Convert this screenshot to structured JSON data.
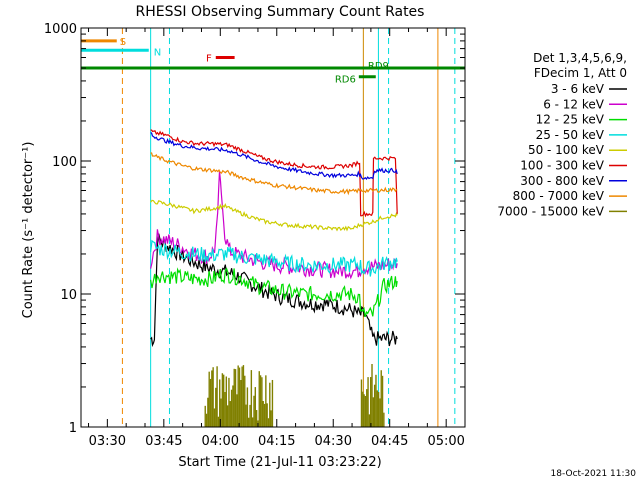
{
  "chart_data": {
    "type": "line",
    "title": "RHESSI Observing Summary Count Rates",
    "xlabel": "Start Time (21-Jul-11 03:23:22)",
    "ylabel": "Count Rate (s⁻¹ detector⁻¹)",
    "yscale": "log",
    "ylim": [
      1,
      1000
    ],
    "xlim": [
      203,
      305
    ],
    "x_unit": "minutes after 00:00 UT, 21-Jul-11",
    "x_ticks": [
      {
        "value": 210,
        "label": "03:30"
      },
      {
        "value": 225,
        "label": "03:45"
      },
      {
        "value": 240,
        "label": "04:00"
      },
      {
        "value": 255,
        "label": "04:15"
      },
      {
        "value": 270,
        "label": "04:30"
      },
      {
        "value": 285,
        "label": "04:45"
      },
      {
        "value": 300,
        "label": "05:00"
      }
    ],
    "y_ticks": [
      {
        "value": 1,
        "label": "1"
      },
      {
        "value": 10,
        "label": "10"
      },
      {
        "value": 100,
        "label": "100"
      },
      {
        "value": 1000,
        "label": "1000"
      }
    ],
    "legend": {
      "position": "right",
      "header_line1": "Det 1,3,4,5,6,9,",
      "header_line2": "FDecim 1, Att 0"
    },
    "series": [
      {
        "name": "3 - 6 keV",
        "color": "#000000",
        "x": [
          221.5,
          222,
          222.5,
          223.3,
          225,
          228,
          232,
          236,
          240,
          244,
          248,
          252,
          256,
          260,
          264,
          268,
          272,
          275,
          277,
          278.5,
          280.5,
          283.5,
          284,
          285.5,
          286.5,
          287
        ],
        "y": [
          4.6,
          4.6,
          4.6,
          26,
          24,
          21,
          18,
          16,
          15,
          14,
          12,
          10.5,
          9.5,
          9,
          8.5,
          8.5,
          8,
          7.5,
          7,
          7,
          4.6,
          4.6,
          4.6,
          4.6,
          4.6,
          4.6
        ]
      },
      {
        "name": "6 - 12 keV",
        "color": "#cc00cc",
        "x": [
          221.5,
          223.3,
          228,
          233,
          237,
          238.5,
          239.3,
          239.8,
          240.3,
          241.2,
          242.5,
          246,
          252,
          258,
          264,
          270,
          275,
          277,
          277.5,
          280.5,
          284,
          286.5,
          287
        ],
        "y": [
          17,
          27,
          24,
          20,
          19,
          22,
          40,
          85,
          55,
          28,
          21,
          19,
          17,
          16,
          15.5,
          15,
          15,
          15,
          16,
          16,
          16.5,
          17,
          17
        ]
      },
      {
        "name": "12 - 25 keV",
        "color": "#00dd00",
        "x": [
          221.5,
          223.3,
          228,
          233,
          238,
          240,
          242,
          246,
          250,
          256,
          262,
          268,
          274,
          277,
          277.5,
          280.5,
          283.5,
          286.5,
          287
        ],
        "y": [
          12,
          14,
          13.5,
          13,
          13,
          14,
          14,
          13,
          11.5,
          10.5,
          10,
          10,
          10,
          9.5,
          7,
          7,
          11.5,
          12.5,
          12.5
        ]
      },
      {
        "name": "25 - 50 keV",
        "color": "#00dddd",
        "x": [
          221.5,
          223.3,
          228,
          233,
          238,
          240,
          242,
          246,
          252,
          258,
          264,
          270,
          275,
          277,
          277.5,
          280.5,
          283.5,
          286.5,
          287
        ],
        "y": [
          23,
          22,
          21,
          20,
          19.5,
          20,
          20,
          19,
          18,
          17,
          16.5,
          16.5,
          16.5,
          17,
          15.5,
          15.5,
          17,
          17.5,
          17.5
        ]
      },
      {
        "name": "50 - 100 keV",
        "color": "#cccc00",
        "x": [
          221.5,
          223.3,
          228,
          233,
          238,
          241,
          244,
          248,
          252,
          258,
          264,
          270,
          275,
          277,
          280.5,
          283.5,
          286.5,
          287
        ],
        "y": [
          49,
          49,
          46,
          42,
          44,
          46,
          42,
          38,
          35,
          33,
          32,
          31,
          31,
          33,
          35,
          38,
          39,
          39
        ]
      },
      {
        "name": "100 - 300 keV",
        "color": "#dd0000",
        "x": [
          221.5,
          222,
          226,
          230,
          234,
          238,
          242,
          246,
          250,
          254,
          258,
          262,
          266,
          270,
          275,
          277,
          277.3,
          280.5,
          280.7,
          286.5,
          287
        ],
        "y": [
          170,
          165,
          155,
          140,
          135,
          135,
          132,
          120,
          108,
          100,
          95,
          92,
          90,
          90,
          93,
          98,
          40,
          40,
          105,
          105,
          40
        ]
      },
      {
        "name": "300 - 800 keV",
        "color": "#0000dd",
        "x": [
          221.5,
          222,
          226,
          230,
          234,
          238,
          242,
          246,
          250,
          254,
          258,
          262,
          266,
          270,
          275,
          277,
          277.5,
          280.5,
          281,
          286.5,
          287
        ],
        "y": [
          165,
          155,
          140,
          130,
          125,
          123,
          120,
          110,
          100,
          92,
          87,
          83,
          80,
          78,
          78,
          80,
          75,
          75,
          85,
          85,
          80
        ]
      },
      {
        "name": "800 - 7000 keV",
        "color": "#ee8800",
        "x": [
          221.5,
          222,
          226,
          230,
          234,
          238,
          242,
          246,
          250,
          254,
          258,
          262,
          266,
          270,
          275,
          277,
          280.5,
          286.5,
          287
        ],
        "y": [
          115,
          110,
          100,
          92,
          87,
          85,
          82,
          75,
          70,
          66,
          64,
          62,
          60,
          59,
          59,
          60,
          60,
          61,
          61
        ]
      },
      {
        "name": "7000 - 15000 keV",
        "color": "#808000",
        "x": [
          236,
          237.5,
          239,
          240.5,
          242,
          243.5,
          245,
          246.5,
          248,
          249.5,
          251,
          252.5,
          254
        ],
        "y": [
          1.5,
          2.5,
          2.2,
          3.0,
          2.8,
          2.0,
          2.5,
          1.5,
          1.8,
          1.3,
          1.4,
          1.2,
          1.1
        ]
      }
    ],
    "annotations": [
      {
        "label": "S",
        "color": "#ee8800",
        "x": [
          203,
          212.5
        ],
        "y": 800
      },
      {
        "label": "N",
        "color": "#00dddd",
        "x": [
          203,
          221
        ],
        "y": 680
      },
      {
        "label": "F",
        "color": "#dd0000",
        "x": [
          238.8,
          243.8
        ],
        "y": 600
      },
      {
        "label": "RD9",
        "color": "#008800",
        "x": [
          203,
          305
        ],
        "y": 500
      },
      {
        "label": "RD6",
        "color": "#008800",
        "x": [
          276.8,
          281.3
        ],
        "y": 430
      }
    ],
    "orbit_markers": [
      {
        "kind": "saa-night-boundary",
        "color": "#ee8800",
        "x": 214,
        "style": "dashed"
      },
      {
        "kind": "saa-night-boundary",
        "color": "#00dddd",
        "x": 226.5,
        "style": "dashed"
      },
      {
        "kind": "saa-night-boundary",
        "color": "#00dddd",
        "x": 221.5,
        "style": "solid"
      },
      {
        "kind": "saa-night-boundary",
        "color": "#cc8800",
        "x": 278,
        "style": "solid"
      },
      {
        "kind": "saa-night-boundary",
        "color": "#00dddd",
        "x": 282,
        "style": "solid"
      },
      {
        "kind": "saa-night-boundary",
        "color": "#00dddd",
        "x": 284.7,
        "style": "dashed"
      },
      {
        "kind": "saa-night-boundary",
        "color": "#ee8800",
        "x": 297.8,
        "style": "solid"
      },
      {
        "kind": "saa-night-boundary",
        "color": "#00dddd",
        "x": 302.3,
        "style": "dashed"
      }
    ],
    "footer_date": "18-Oct-2021 11:30",
    "grid": false
  }
}
